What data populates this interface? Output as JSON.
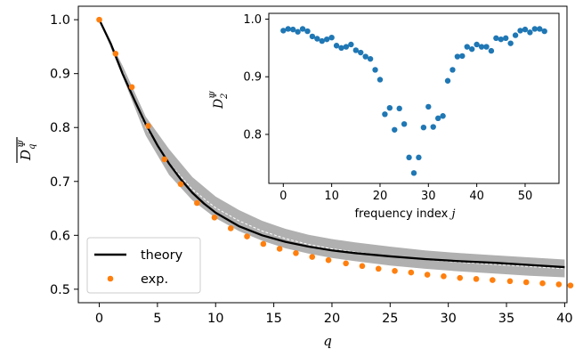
{
  "chart_data": [
    {
      "type": "line",
      "xlabel": "q",
      "ylabel": "D_q^Ψ (mean)",
      "xlim": [
        -1.8,
        40.2
      ],
      "ylim": [
        0.475,
        1.025
      ],
      "xticks": [
        "0",
        "5",
        "10",
        "15",
        "20",
        "25",
        "30",
        "35",
        "40"
      ],
      "yticks": [
        "0.5",
        "0.6",
        "0.7",
        "0.8",
        "0.9",
        "1.0"
      ],
      "grid": false,
      "legend_position": "lower-left",
      "series": [
        {
          "name": "theory",
          "color": "#000000",
          "x": [
            0,
            1,
            2,
            3,
            4,
            5,
            6,
            7,
            8,
            9,
            10,
            12,
            14,
            16,
            18,
            20,
            22,
            25,
            28,
            31,
            34,
            37,
            40
          ],
          "values": [
            1.0,
            0.955,
            0.9,
            0.852,
            0.806,
            0.767,
            0.733,
            0.704,
            0.679,
            0.659,
            0.642,
            0.617,
            0.6,
            0.588,
            0.579,
            0.572,
            0.567,
            0.561,
            0.556,
            0.552,
            0.549,
            0.545,
            0.541
          ]
        },
        {
          "name": "exp.",
          "color": "#ff7f0e",
          "x": [
            0,
            1.4,
            2.8,
            4.2,
            5.6,
            7,
            8.4,
            9.9,
            11.3,
            12.7,
            14.1,
            15.5,
            16.9,
            18.3,
            19.7,
            21.2,
            22.6,
            24,
            25.4,
            26.8,
            28.2,
            29.6,
            31,
            32.4,
            33.8,
            35.3,
            36.7,
            38.1,
            39.5,
            40.5
          ],
          "values": [
            1.0,
            0.937,
            0.875,
            0.803,
            0.741,
            0.695,
            0.66,
            0.633,
            0.613,
            0.598,
            0.584,
            0.575,
            0.567,
            0.56,
            0.554,
            0.548,
            0.543,
            0.538,
            0.534,
            0.531,
            0.527,
            0.524,
            0.521,
            0.519,
            0.517,
            0.515,
            0.513,
            0.511,
            0.509,
            0.507
          ]
        }
      ],
      "band": {
        "color": "#b0b0b0",
        "x": [
          0,
          2,
          4,
          6,
          8,
          10,
          12,
          14,
          16,
          18,
          20,
          22,
          25,
          28,
          31,
          34,
          37,
          40
        ],
        "upper": [
          1.0,
          0.915,
          0.82,
          0.76,
          0.708,
          0.672,
          0.647,
          0.627,
          0.612,
          0.601,
          0.593,
          0.587,
          0.579,
          0.572,
          0.567,
          0.563,
          0.559,
          0.555
        ],
        "lower": [
          1.0,
          0.895,
          0.785,
          0.712,
          0.665,
          0.632,
          0.608,
          0.59,
          0.576,
          0.566,
          0.558,
          0.552,
          0.544,
          0.538,
          0.533,
          0.529,
          0.525,
          0.522
        ]
      },
      "median_line": {
        "color": "#ffffff",
        "style": "dashed",
        "x": [
          0,
          2,
          4,
          6,
          8,
          10,
          12,
          14,
          16,
          18,
          20,
          22,
          25,
          28,
          31,
          34,
          37,
          40
        ],
        "values": [
          1.0,
          0.904,
          0.8,
          0.734,
          0.685,
          0.651,
          0.627,
          0.608,
          0.594,
          0.583,
          0.575,
          0.569,
          0.561,
          0.555,
          0.55,
          0.546,
          0.542,
          0.538
        ]
      }
    },
    {
      "type": "scatter",
      "xlabel": "frequency index j",
      "ylabel": "D_2^Ψ",
      "xlim": [
        -3,
        57
      ],
      "ylim": [
        0.715,
        1.01
      ],
      "xticks": [
        "0",
        "10",
        "20",
        "30",
        "40",
        "50"
      ],
      "yticks": [
        "0.8",
        "0.9",
        "1.0"
      ],
      "grid": false,
      "series": [
        {
          "name": "",
          "color": "#1f77b4",
          "x": [
            0,
            1,
            2,
            3,
            4,
            5,
            6,
            7,
            8,
            9,
            10,
            11,
            12,
            13,
            14,
            15,
            16,
            17,
            18,
            19,
            20,
            21,
            22,
            23,
            24,
            25,
            26,
            27,
            28,
            29,
            30,
            31,
            32,
            33,
            34,
            35,
            36,
            37,
            38,
            39,
            40,
            41,
            42,
            43,
            44,
            45,
            46,
            47,
            48,
            49,
            50,
            51,
            52,
            53,
            54
          ],
          "values": [
            0.98,
            0.983,
            0.982,
            0.978,
            0.983,
            0.979,
            0.97,
            0.966,
            0.962,
            0.965,
            0.968,
            0.954,
            0.95,
            0.952,
            0.956,
            0.946,
            0.942,
            0.935,
            0.931,
            0.912,
            0.895,
            0.835,
            0.846,
            0.808,
            0.845,
            0.818,
            0.76,
            0.733,
            0.76,
            0.812,
            0.848,
            0.813,
            0.828,
            0.832,
            0.893,
            0.912,
            0.935,
            0.936,
            0.952,
            0.948,
            0.956,
            0.952,
            0.952,
            0.945,
            0.967,
            0.965,
            0.967,
            0.958,
            0.972,
            0.98,
            0.982,
            0.977,
            0.983,
            0.983,
            0.979
          ]
        }
      ]
    }
  ],
  "legend": {
    "items": [
      {
        "label": "theory",
        "color": "#000000",
        "marker": "line"
      },
      {
        "label": "exp.",
        "color": "#ff7f0e",
        "marker": "dot"
      }
    ]
  },
  "inset": {
    "ylabel_sub": "2",
    "ylabel_sup": "Ψ",
    "xlabel_text": "frequency index ",
    "xlabel_var": "j"
  },
  "main_labels": {
    "ylabel_sub": "q",
    "ylabel_sup": "Ψ",
    "xlabel": "q"
  }
}
